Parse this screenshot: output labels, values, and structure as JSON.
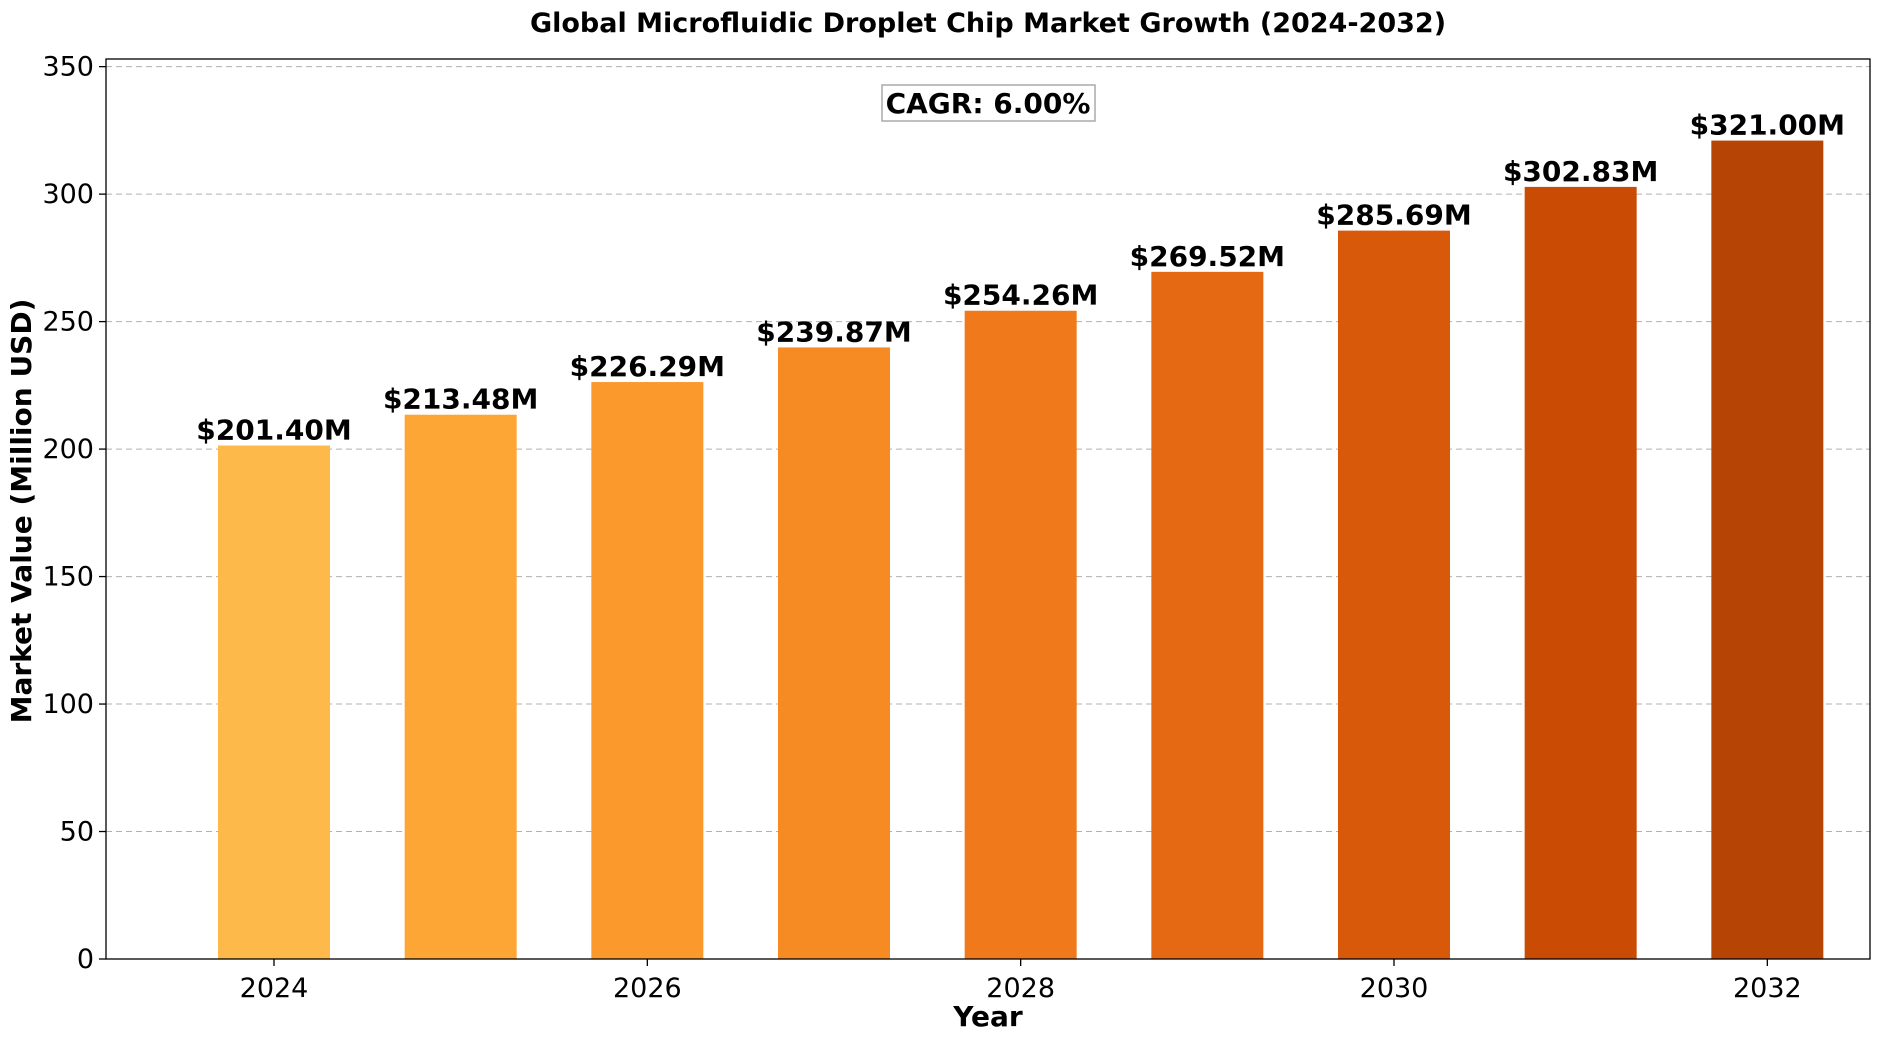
{
  "chart_data": {
    "type": "bar",
    "title": "Global Microfluidic Droplet Chip Market Growth (2024-2032)",
    "xlabel": "Year",
    "ylabel": "Market Value (Million USD)",
    "x": [
      2024,
      2025,
      2026,
      2027,
      2028,
      2029,
      2030,
      2031,
      2032
    ],
    "values": [
      201.4,
      213.48,
      226.29,
      239.87,
      254.26,
      269.52,
      285.69,
      302.83,
      321.0
    ],
    "data_labels": [
      "$201.40M",
      "$213.48M",
      "$226.29M",
      "$239.87M",
      "$254.26M",
      "$269.52M",
      "$285.69M",
      "$302.83M",
      "$321.00M"
    ],
    "bar_colors": [
      "#FDB94A",
      "#FDA636",
      "#FB992C",
      "#F68A23",
      "#EF791B",
      "#E56913",
      "#D9590A",
      "#CA4B03",
      "#B64405"
    ],
    "xticks": [
      "2024",
      "2026",
      "2028",
      "2030",
      "2032"
    ],
    "yticks": [
      "0",
      "50",
      "100",
      "150",
      "200",
      "250",
      "300",
      "350"
    ],
    "ylim": [
      0,
      353
    ],
    "xlim": [
      2023.1,
      2032.55
    ],
    "grid": "y-dashed",
    "annotation": "CAGR: 6.00%"
  }
}
